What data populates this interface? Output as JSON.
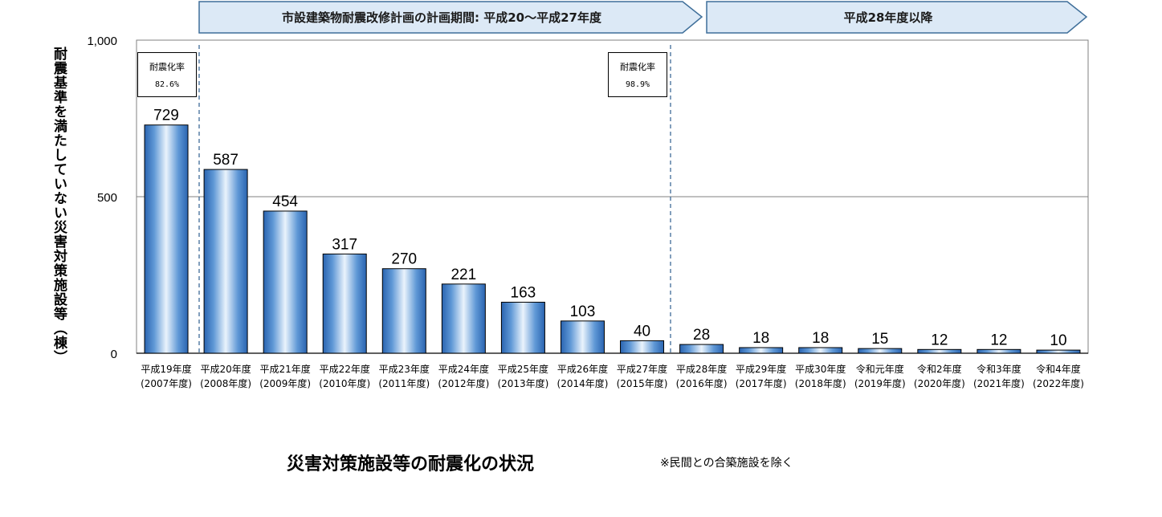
{
  "periods": [
    {
      "label": "市設建築物耐震改修計画の計画期間:  平成20～平成27年度"
    },
    {
      "label": "平成28年度以降"
    }
  ],
  "rate_boxes": [
    {
      "title": "耐震化率",
      "value": "82.6%"
    },
    {
      "title": "耐震化率",
      "value": "98.9%"
    }
  ],
  "footer": {
    "title": "災害対策施設等の耐震化の状況",
    "note": "※民間との合築施設を除く"
  },
  "chart_data": {
    "type": "bar",
    "ylabel": "耐震基準を満たしていない災害対策施設等（棟）",
    "ylim": [
      0,
      1000
    ],
    "yticks": [
      "0",
      "500",
      "1,000"
    ],
    "grid": true,
    "categories": [
      {
        "top": "平成19年度",
        "bottom": "(2007年度)"
      },
      {
        "top": "平成20年度",
        "bottom": "(2008年度)"
      },
      {
        "top": "平成21年度",
        "bottom": "(2009年度)"
      },
      {
        "top": "平成22年度",
        "bottom": "(2010年度)"
      },
      {
        "top": "平成23年度",
        "bottom": "(2011年度)"
      },
      {
        "top": "平成24年度",
        "bottom": "(2012年度)"
      },
      {
        "top": "平成25年度",
        "bottom": "(2013年度)"
      },
      {
        "top": "平成26年度",
        "bottom": "(2014年度)"
      },
      {
        "top": "平成27年度",
        "bottom": "(2015年度)"
      },
      {
        "top": "平成28年度",
        "bottom": "(2016年度)"
      },
      {
        "top": "平成29年度",
        "bottom": "(2017年度)"
      },
      {
        "top": "平成30年度",
        "bottom": "(2018年度)"
      },
      {
        "top": "令和元年度",
        "bottom": "(2019年度)"
      },
      {
        "top": "令和2年度",
        "bottom": "(2020年度)"
      },
      {
        "top": "令和3年度",
        "bottom": "(2021年度)"
      },
      {
        "top": "令和4年度",
        "bottom": "(2022年度)"
      }
    ],
    "values": [
      729,
      587,
      454,
      317,
      270,
      221,
      163,
      103,
      40,
      28,
      18,
      18,
      15,
      12,
      12,
      10
    ],
    "bar_color": "#3a7cc4"
  }
}
